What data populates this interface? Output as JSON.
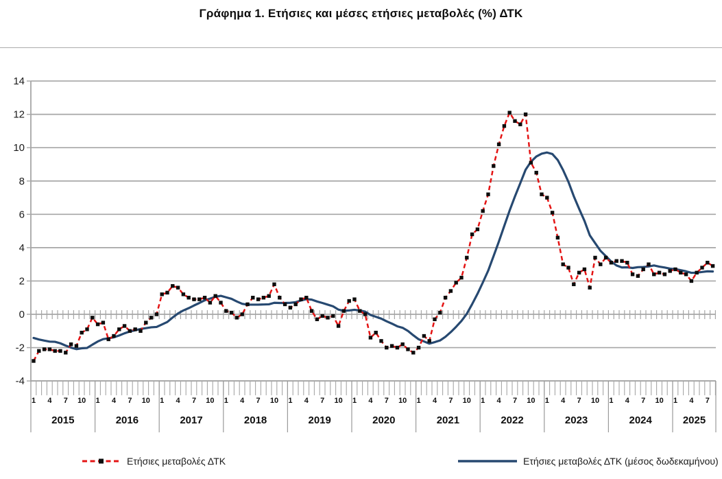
{
  "page": {
    "title": "Γράφημα 1. Ετήσιες και μέσες ετήσιες μεταβολές (%) ΔΤΚ"
  },
  "legend": {
    "items": [
      {
        "label": "Ετήσιες μεταβολές ΔΤΚ",
        "color": "#e41414",
        "style": "dashed-red-with-black-square-marker"
      },
      {
        "label": "Ετήσιες μεταβολές ΔΤΚ (μέσος δωδεκαμήνου)",
        "color": "#274971",
        "style": "solid-blue"
      }
    ]
  },
  "chart_data": {
    "type": "line",
    "title": "Γράφημα 1. Ετήσιες και μέσες ετήσιες μεταβολές (%) ΔΤΚ",
    "x_unit": "month",
    "start": "2015-01",
    "end": "2025-08",
    "years": [
      "2015",
      "2016",
      "2017",
      "2018",
      "2019",
      "2020",
      "2021",
      "2022",
      "2023",
      "2024",
      "2025"
    ],
    "month_tick_labels": [
      "1",
      "4",
      "7",
      "10"
    ],
    "months_labeled": [
      1,
      4,
      7,
      10
    ],
    "y_ticks": [
      14,
      12,
      10,
      8,
      6,
      4,
      2,
      0,
      -2,
      -4
    ],
    "ylim": [
      -4,
      14
    ],
    "grid": "horizontal",
    "legend_position": "bottom",
    "colors": {
      "annual": "#e41414",
      "average": "#274971",
      "grid": "#a6a6a6",
      "marker": "#0d0d0d"
    },
    "series": [
      {
        "name": "Ετήσιες μεταβολές ΔΤΚ",
        "line_style": "dashed",
        "marker": "black-square",
        "color": "#e41414",
        "values": [
          -2.8,
          -2.2,
          -2.1,
          -2.1,
          -2.2,
          -2.2,
          -2.3,
          -1.8,
          -1.9,
          -1.1,
          -0.9,
          -0.2,
          -0.6,
          -0.5,
          -1.5,
          -1.3,
          -0.9,
          -0.7,
          -1.0,
          -0.9,
          -1.0,
          -0.5,
          -0.2,
          0.0,
          1.2,
          1.3,
          1.7,
          1.6,
          1.2,
          1.0,
          0.9,
          0.9,
          1.0,
          0.7,
          1.1,
          0.7,
          0.2,
          0.1,
          -0.2,
          0.0,
          0.6,
          1.0,
          0.9,
          1.0,
          1.1,
          1.8,
          1.0,
          0.6,
          0.4,
          0.6,
          0.9,
          1.0,
          0.2,
          -0.3,
          -0.1,
          -0.2,
          -0.1,
          -0.7,
          0.2,
          0.8,
          0.9,
          0.2,
          0.0,
          -1.4,
          -1.1,
          -1.6,
          -2.0,
          -1.9,
          -2.0,
          -1.8,
          -2.1,
          -2.3,
          -2.0,
          -1.3,
          -1.6,
          -0.3,
          0.1,
          1.0,
          1.4,
          1.9,
          2.2,
          3.4,
          4.8,
          5.1,
          6.2,
          7.2,
          8.9,
          10.2,
          11.3,
          12.1,
          11.6,
          11.4,
          12.0,
          9.1,
          8.5,
          7.2,
          7.0,
          6.1,
          4.6,
          3.0,
          2.8,
          1.8,
          2.5,
          2.7,
          1.6,
          3.4,
          3.0,
          3.4,
          3.1,
          3.2,
          3.2,
          3.1,
          2.4,
          2.3,
          2.7,
          3.0,
          2.4,
          2.5,
          2.4,
          2.6,
          2.7,
          2.5,
          2.4,
          2.0,
          2.5,
          2.8,
          3.1,
          2.9
        ]
      },
      {
        "name": "Ετήσιες μεταβολές ΔΤΚ (μέσος δωδεκαμήνου)",
        "line_style": "solid",
        "marker": "none",
        "color": "#274971",
        "values": [
          -1.42,
          -1.51,
          -1.58,
          -1.64,
          -1.65,
          -1.74,
          -1.88,
          -2.0,
          -2.09,
          -2.04,
          -2.02,
          -1.82,
          -1.63,
          -1.49,
          -1.44,
          -1.38,
          -1.27,
          -1.14,
          -1.03,
          -0.96,
          -0.88,
          -0.83,
          -0.78,
          -0.76,
          -0.61,
          -0.46,
          -0.19,
          0.05,
          0.23,
          0.37,
          0.53,
          0.68,
          0.84,
          0.94,
          1.05,
          1.11,
          1.02,
          0.93,
          0.77,
          0.63,
          0.58,
          0.58,
          0.58,
          0.59,
          0.6,
          0.69,
          0.68,
          0.68,
          0.69,
          0.73,
          0.83,
          0.91,
          0.88,
          0.77,
          0.68,
          0.58,
          0.48,
          0.28,
          0.21,
          0.23,
          0.27,
          0.23,
          0.16,
          -0.04,
          -0.15,
          -0.26,
          -0.42,
          -0.56,
          -0.72,
          -0.81,
          -1.0,
          -1.26,
          -1.5,
          -1.63,
          -1.76,
          -1.67,
          -1.57,
          -1.35,
          -1.07,
          -0.75,
          -0.4,
          0.03,
          0.61,
          1.23,
          1.91,
          2.62,
          3.49,
          4.37,
          5.3,
          6.22,
          7.07,
          7.87,
          8.68,
          9.16,
          9.47,
          9.64,
          9.71,
          9.62,
          9.26,
          8.66,
          7.95,
          7.09,
          6.33,
          5.61,
          4.74,
          4.27,
          3.81,
          3.49,
          3.17,
          2.93,
          2.81,
          2.82,
          2.78,
          2.83,
          2.84,
          2.87,
          2.93,
          2.86,
          2.81,
          2.74,
          2.71,
          2.65,
          2.58,
          2.49,
          2.5,
          2.54,
          2.58,
          2.57
        ]
      }
    ]
  }
}
